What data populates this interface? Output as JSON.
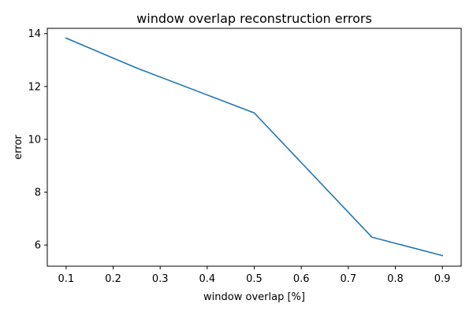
{
  "chart_data": {
    "type": "line",
    "title": "window overlap reconstruction errors",
    "xlabel": "window overlap [%]",
    "ylabel": "error",
    "xlim": [
      0.06,
      0.94
    ],
    "ylim": [
      5.2,
      14.2
    ],
    "xticks": [
      0.1,
      0.2,
      0.3,
      0.4,
      0.5,
      0.6,
      0.7,
      0.8,
      0.9
    ],
    "xtick_labels": [
      "0.1",
      "0.2",
      "0.3",
      "0.4",
      "0.5",
      "0.6",
      "0.7",
      "0.8",
      "0.9"
    ],
    "yticks": [
      6,
      8,
      10,
      12,
      14
    ],
    "ytick_labels": [
      "6",
      "8",
      "10",
      "12",
      "14"
    ],
    "grid": false,
    "series": [
      {
        "color": "#1f77b4",
        "x": [
          0.1,
          0.25,
          0.5,
          0.75,
          0.9
        ],
        "y": [
          13.83,
          12.7,
          11.0,
          6.3,
          5.6
        ]
      }
    ]
  }
}
